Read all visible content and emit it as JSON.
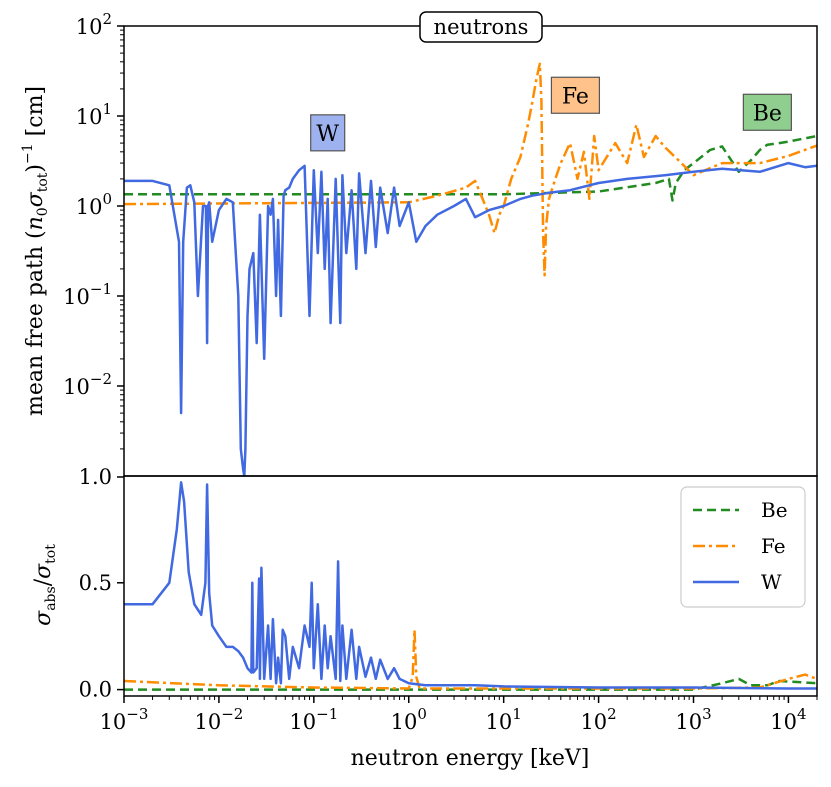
{
  "chart_data": [
    {
      "type": "line",
      "title": "neutrons",
      "xscale": "log",
      "yscale": "log",
      "xlim": [
        0.001,
        20000
      ],
      "ylim": [
        0.001,
        100
      ],
      "ylabel": "mean free path (n₀σtot)⁻¹ [cm]",
      "ytick_labels": [
        "10⁻²",
        "10⁻¹",
        "10⁰",
        "10¹",
        "10²"
      ],
      "ytick_exponents": [
        "-2",
        "-1",
        "0",
        "1",
        "2"
      ],
      "bottom_tick_label": "1.0",
      "annotations": [
        {
          "text": "W",
          "x": 0.14,
          "y": 6.5,
          "color": "#9fb2f0"
        },
        {
          "text": "Fe",
          "x": 57,
          "y": 17,
          "color": "#ffc28a"
        },
        {
          "text": "Be",
          "x": 6000,
          "y": 11,
          "color": "#8fce8f"
        }
      ],
      "series": [
        {
          "name": "Be",
          "color": "#228b22",
          "style": "dashed",
          "x": [
            0.001,
            1,
            10,
            100,
            400,
            550,
            600,
            650,
            800,
            1000,
            1500,
            2000,
            3000,
            4000,
            5000,
            6000,
            8000,
            10000,
            20000
          ],
          "y": [
            1.35,
            1.35,
            1.35,
            1.45,
            1.8,
            2.0,
            1.15,
            1.8,
            2.5,
            3.0,
            4.2,
            4.6,
            2.4,
            3.2,
            4.2,
            4.8,
            5.0,
            5.2,
            6.0
          ]
        },
        {
          "name": "Fe",
          "color": "#ff8c00",
          "style": "dashdot",
          "x": [
            0.001,
            1,
            2,
            4,
            5,
            6,
            7,
            8,
            9,
            10,
            12,
            15,
            18,
            20,
            22,
            24,
            25,
            26,
            27,
            28,
            30,
            35,
            40,
            50,
            60,
            70,
            80,
            90,
            100,
            150,
            200,
            250,
            300,
            400,
            500,
            700,
            1000,
            2000,
            5000,
            10000,
            20000
          ],
          "y": [
            1.05,
            1.1,
            1.3,
            1.6,
            1.9,
            1.2,
            0.8,
            0.5,
            0.8,
            1.0,
            2.0,
            3.5,
            8.0,
            14,
            25,
            38,
            15,
            0.5,
            0.17,
            0.6,
            1.2,
            2.0,
            3.0,
            5.0,
            2.0,
            4.0,
            1.2,
            6.0,
            2.5,
            5.0,
            3.0,
            8.0,
            3.5,
            6.0,
            4.5,
            3.2,
            2.2,
            3.0,
            3.0,
            3.6,
            4.7
          ]
        },
        {
          "name": "W",
          "color": "#4169e1",
          "style": "solid",
          "x": [
            0.001,
            0.002,
            0.003,
            0.0038,
            0.004,
            0.0042,
            0.0046,
            0.005,
            0.0055,
            0.006,
            0.0068,
            0.0073,
            0.0075,
            0.0077,
            0.0079,
            0.0085,
            0.01,
            0.012,
            0.014,
            0.016,
            0.017,
            0.018,
            0.0185,
            0.019,
            0.02,
            0.021,
            0.023,
            0.025,
            0.027,
            0.03,
            0.033,
            0.035,
            0.037,
            0.04,
            0.042,
            0.045,
            0.048,
            0.05,
            0.055,
            0.06,
            0.07,
            0.08,
            0.09,
            0.1,
            0.11,
            0.12,
            0.13,
            0.14,
            0.15,
            0.17,
            0.19,
            0.2,
            0.22,
            0.25,
            0.28,
            0.3,
            0.35,
            0.4,
            0.45,
            0.5,
            0.6,
            0.7,
            0.8,
            1,
            1.2,
            1.5,
            2,
            3,
            4,
            5,
            7,
            10,
            15,
            20,
            30,
            50,
            100,
            200,
            500,
            1000,
            2000,
            5000,
            10000,
            15000,
            20000
          ],
          "y": [
            1.9,
            1.9,
            1.7,
            0.4,
            0.005,
            0.4,
            1.6,
            1.7,
            1.1,
            0.1,
            1.0,
            1.0,
            0.03,
            1.0,
            1.1,
            0.4,
            0.9,
            1.2,
            1.1,
            0.1,
            0.002,
            0.0012,
            0.001,
            0.002,
            0.06,
            0.2,
            0.3,
            0.03,
            0.8,
            0.02,
            1.0,
            0.8,
            1.2,
            0.1,
            0.7,
            0.06,
            1.3,
            1.5,
            1.6,
            2.0,
            2.5,
            2.8,
            0.06,
            2.5,
            0.3,
            2.4,
            0.2,
            1.2,
            0.05,
            2.0,
            0.05,
            2.2,
            0.3,
            1.5,
            0.2,
            2.3,
            0.3,
            1.9,
            0.35,
            1.6,
            0.5,
            1.6,
            0.6,
            1.1,
            0.4,
            0.6,
            0.8,
            1.0,
            1.2,
            0.75,
            0.9,
            1.0,
            1.2,
            1.3,
            1.4,
            1.5,
            1.8,
            2.0,
            2.2,
            2.4,
            2.6,
            2.4,
            3.0,
            2.7,
            2.8
          ]
        }
      ]
    },
    {
      "type": "line",
      "xscale": "log",
      "xlim": [
        0.001,
        20000
      ],
      "ylim": [
        -0.03,
        1.0
      ],
      "xlabel": "neutron energy [keV]",
      "ylabel": "σabs/σtot",
      "ytick_labels": [
        "0.0",
        "0.5"
      ],
      "ytick_values": [
        0,
        0.5
      ],
      "xtick_exponents": [
        "-3",
        "-2",
        "-1",
        "0",
        "1",
        "2",
        "3",
        "4"
      ],
      "legend": {
        "location": "upper right",
        "entries": [
          "Be",
          "Fe",
          "W"
        ]
      },
      "series": [
        {
          "name": "Be",
          "color": "#228b22",
          "style": "dashed",
          "x": [
            0.001,
            1,
            100,
            1000,
            2000,
            3000,
            4000,
            6000,
            8000,
            20000
          ],
          "y": [
            0.0,
            0.0,
            0.0,
            0.0,
            0.03,
            0.05,
            0.02,
            0.02,
            0.04,
            0.03
          ]
        },
        {
          "name": "Fe",
          "color": "#ff8c00",
          "style": "dashdot",
          "x": [
            0.001,
            0.01,
            0.1,
            1.0,
            1.1,
            1.15,
            1.2,
            1.3,
            10,
            100,
            1000,
            5000,
            10000,
            15000,
            20000
          ],
          "y": [
            0.04,
            0.02,
            0.01,
            0.005,
            0.06,
            0.28,
            0.06,
            0.005,
            0.005,
            0.005,
            0.005,
            0.01,
            0.05,
            0.07,
            0.05
          ]
        },
        {
          "name": "W",
          "color": "#4169e1",
          "style": "solid",
          "x": [
            0.001,
            0.002,
            0.003,
            0.0036,
            0.004,
            0.0043,
            0.0048,
            0.0055,
            0.0065,
            0.0072,
            0.0075,
            0.0079,
            0.0085,
            0.01,
            0.012,
            0.014,
            0.016,
            0.018,
            0.02,
            0.022,
            0.0225,
            0.023,
            0.025,
            0.0265,
            0.027,
            0.028,
            0.03,
            0.033,
            0.035,
            0.037,
            0.04,
            0.042,
            0.045,
            0.047,
            0.05,
            0.055,
            0.06,
            0.07,
            0.08,
            0.09,
            0.095,
            0.1,
            0.11,
            0.12,
            0.13,
            0.14,
            0.15,
            0.17,
            0.18,
            0.19,
            0.2,
            0.22,
            0.25,
            0.28,
            0.3,
            0.35,
            0.4,
            0.45,
            0.5,
            0.6,
            0.7,
            0.8,
            1,
            1.5,
            2,
            3,
            5,
            10,
            100,
            1000,
            10000,
            20000
          ],
          "y": [
            0.4,
            0.4,
            0.5,
            0.75,
            0.97,
            0.88,
            0.55,
            0.4,
            0.35,
            0.5,
            0.96,
            0.45,
            0.3,
            0.25,
            0.2,
            0.2,
            0.18,
            0.15,
            0.1,
            0.08,
            0.5,
            0.08,
            0.1,
            0.52,
            0.05,
            0.57,
            0.05,
            0.3,
            0.05,
            0.33,
            0.03,
            0.15,
            0.03,
            0.28,
            0.25,
            0.05,
            0.2,
            0.1,
            0.3,
            0.2,
            0.5,
            0.1,
            0.4,
            0.05,
            0.3,
            0.1,
            0.25,
            0.05,
            0.6,
            0.04,
            0.3,
            0.05,
            0.28,
            0.05,
            0.2,
            0.06,
            0.15,
            0.05,
            0.14,
            0.05,
            0.1,
            0.05,
            0.03,
            0.02,
            0.02,
            0.02,
            0.02,
            0.015,
            0.01,
            0.01,
            0.005,
            0.005
          ]
        }
      ]
    }
  ]
}
